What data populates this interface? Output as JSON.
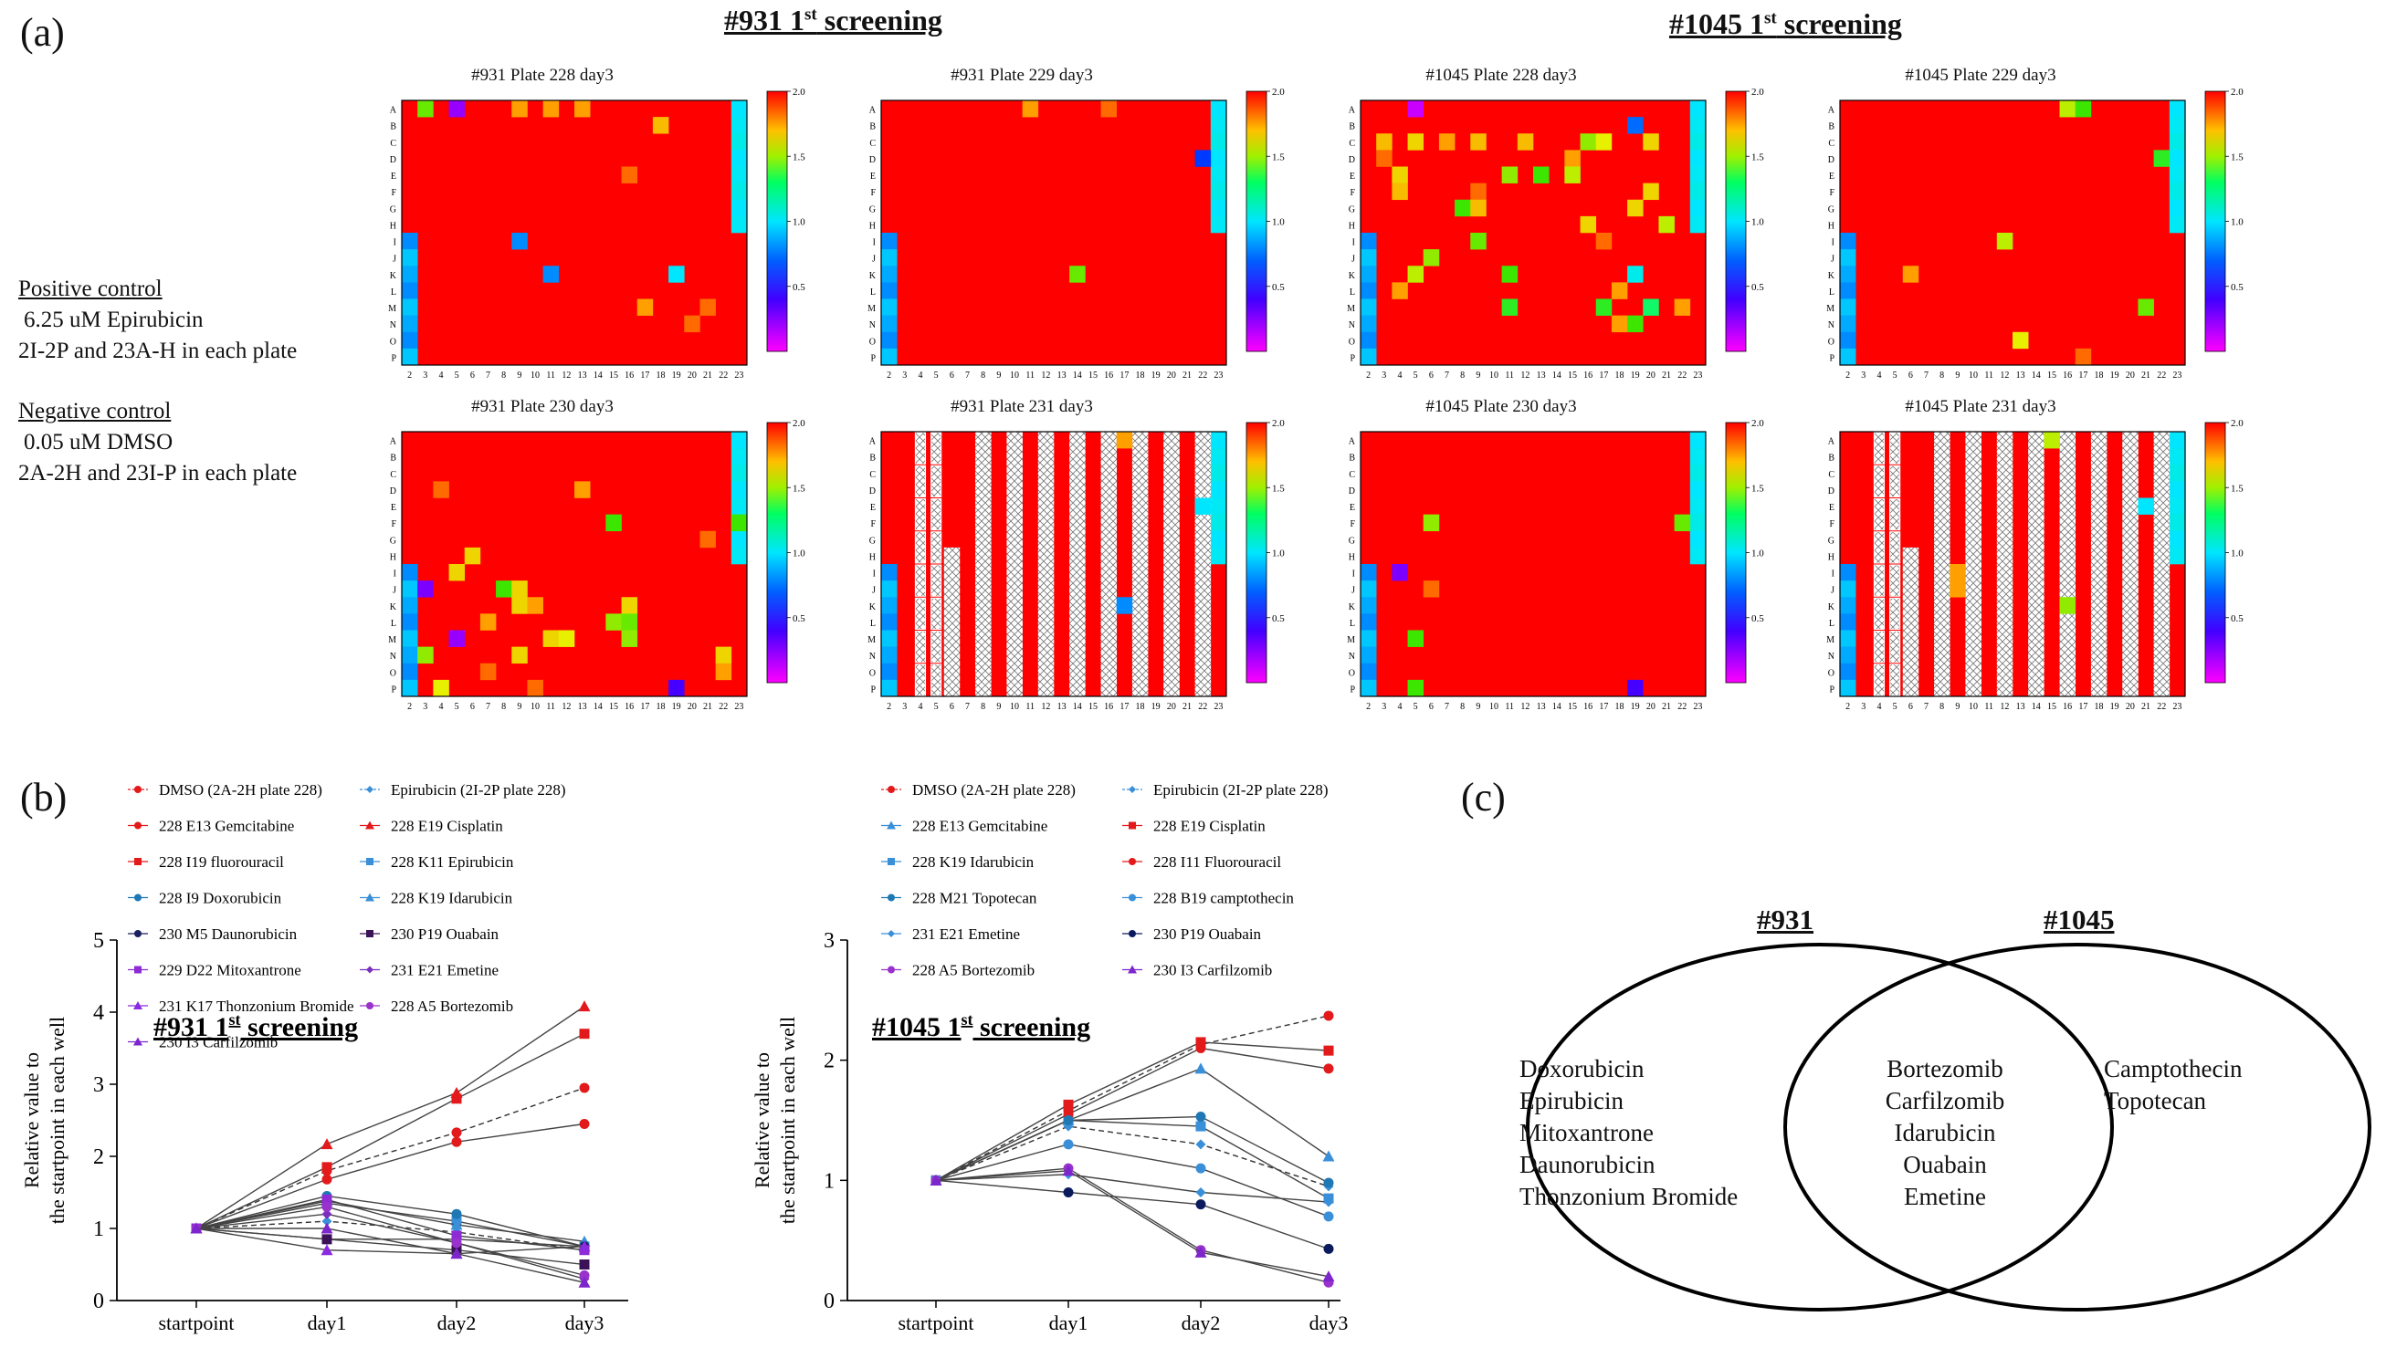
{
  "panel_labels": {
    "a": "(a)",
    "b": "(b)",
    "c": "(c)"
  },
  "section_titles": {
    "s931": {
      "main": "#931 1",
      "sup": "st",
      "rest": " screening"
    },
    "s1045": {
      "main": "#1045 1",
      "sup": "st",
      "rest": " screening"
    }
  },
  "controls": {
    "positive_title": "Positive control",
    "positive_line1": "6.25 uM Epirubicin",
    "positive_line2": "2I-2P and 23A-H in each plate",
    "negative_title": "Negative control",
    "negative_line1": "0.05 uM DMSO",
    "negative_line2": "2A-2H and 23I-P in each plate"
  },
  "heatmaps": {
    "row_labels": [
      "A",
      "B",
      "C",
      "D",
      "E",
      "F",
      "G",
      "H",
      "I",
      "J",
      "K",
      "L",
      "M",
      "N",
      "O",
      "P"
    ],
    "col_labels": [
      "2",
      "3",
      "4",
      "5",
      "6",
      "7",
      "8",
      "9",
      "10",
      "11",
      "12",
      "13",
      "14",
      "15",
      "16",
      "17",
      "18",
      "19",
      "20",
      "21",
      "22",
      "23"
    ],
    "colorbar_ticks": [
      "2.0",
      "1.5",
      "1.0",
      "0.5"
    ],
    "colors": {
      "high": "#ff0000",
      "excluded": "#dddddd"
    },
    "plates": [
      {
        "title": "#931 Plate 228 day3",
        "pattern": "standard",
        "cells": [
          [
            "A",
            3,
            1.55
          ],
          [
            "A",
            5,
            0.25
          ],
          [
            "A",
            9,
            1.85
          ],
          [
            "A",
            11,
            1.85
          ],
          [
            "A",
            13,
            1.85
          ],
          [
            "B",
            18,
            1.8
          ],
          [
            "I",
            9,
            0.85
          ],
          [
            "K",
            11,
            0.85
          ],
          [
            "K",
            19,
            1.0
          ],
          [
            "E",
            16,
            1.9
          ],
          [
            "M",
            17,
            1.85
          ],
          [
            "N",
            20,
            1.9
          ],
          [
            "M",
            21,
            1.9
          ]
        ]
      },
      {
        "title": "#931 Plate 229 day3",
        "pattern": "standard",
        "cells": [
          [
            "A",
            11,
            1.85
          ],
          [
            "A",
            16,
            1.9
          ],
          [
            "D",
            22,
            0.6
          ],
          [
            "K",
            14,
            1.55
          ]
        ]
      },
      {
        "title": "#1045 Plate 228 day3",
        "pattern": "standard",
        "cells": [
          [
            "A",
            5,
            0.15
          ],
          [
            "B",
            19,
            0.75
          ],
          [
            "C",
            3,
            1.8
          ],
          [
            "C",
            5,
            1.75
          ],
          [
            "C",
            7,
            1.85
          ],
          [
            "C",
            9,
            1.8
          ],
          [
            "C",
            12,
            1.8
          ],
          [
            "C",
            16,
            1.6
          ],
          [
            "C",
            17,
            1.7
          ],
          [
            "C",
            20,
            1.75
          ],
          [
            "D",
            3,
            1.9
          ],
          [
            "D",
            15,
            1.85
          ],
          [
            "E",
            4,
            1.75
          ],
          [
            "E",
            11,
            1.6
          ],
          [
            "E",
            13,
            1.5
          ],
          [
            "E",
            15,
            1.65
          ],
          [
            "F",
            4,
            1.8
          ],
          [
            "F",
            9,
            1.9
          ],
          [
            "F",
            20,
            1.75
          ],
          [
            "G",
            8,
            1.5
          ],
          [
            "G",
            9,
            1.8
          ],
          [
            "G",
            19,
            1.75
          ],
          [
            "H",
            16,
            1.75
          ],
          [
            "H",
            21,
            1.65
          ],
          [
            "I",
            9,
            1.55
          ],
          [
            "I",
            17,
            1.9
          ],
          [
            "J",
            6,
            1.6
          ],
          [
            "K",
            5,
            1.65
          ],
          [
            "K",
            11,
            1.5
          ],
          [
            "K",
            19,
            1.05
          ],
          [
            "L",
            4,
            1.85
          ],
          [
            "L",
            18,
            1.85
          ],
          [
            "M",
            11,
            1.45
          ],
          [
            "M",
            17,
            1.45
          ],
          [
            "M",
            20,
            1.35
          ],
          [
            "M",
            22,
            1.85
          ],
          [
            "N",
            18,
            1.85
          ],
          [
            "N",
            19,
            1.5
          ]
        ]
      },
      {
        "title": "#1045 Plate 229 day3",
        "pattern": "standard",
        "cells": [
          [
            "A",
            16,
            1.65
          ],
          [
            "A",
            17,
            1.5
          ],
          [
            "D",
            22,
            1.45
          ],
          [
            "I",
            12,
            1.65
          ],
          [
            "K",
            6,
            1.85
          ],
          [
            "M",
            21,
            1.55
          ],
          [
            "O",
            13,
            1.7
          ],
          [
            "P",
            17,
            1.9
          ]
        ]
      },
      {
        "title": "#931 Plate 230 day3",
        "pattern": "standard",
        "cells": [
          [
            "J",
            3,
            0.3
          ],
          [
            "N",
            3,
            1.6
          ],
          [
            "P",
            4,
            1.7
          ],
          [
            "F",
            15,
            1.5
          ],
          [
            "F",
            23,
            1.5
          ],
          [
            "H",
            6,
            1.75
          ],
          [
            "I",
            5,
            1.75
          ],
          [
            "J",
            8,
            1.5
          ],
          [
            "J",
            9,
            1.75
          ],
          [
            "K",
            9,
            1.75
          ],
          [
            "K",
            10,
            1.85
          ],
          [
            "K",
            16,
            1.75
          ],
          [
            "L",
            7,
            1.85
          ],
          [
            "L",
            15,
            1.6
          ],
          [
            "L",
            16,
            1.55
          ],
          [
            "M",
            5,
            0.25
          ],
          [
            "M",
            11,
            1.75
          ],
          [
            "M",
            12,
            1.7
          ],
          [
            "M",
            16,
            1.6
          ],
          [
            "N",
            9,
            1.75
          ],
          [
            "N",
            22,
            1.75
          ],
          [
            "O",
            22,
            1.85
          ],
          [
            "O",
            7,
            1.9
          ],
          [
            "P",
            19,
            0.4
          ],
          [
            "P",
            10,
            1.9
          ],
          [
            "D",
            4,
            1.9
          ],
          [
            "D",
            13,
            1.85
          ],
          [
            "G",
            21,
            1.9
          ]
        ]
      },
      {
        "title": "#931 Plate 231 day3",
        "pattern": "plate231",
        "cells": [
          [
            "A",
            17,
            1.85
          ],
          [
            "E",
            22,
            1.0
          ],
          [
            "K",
            17,
            0.85
          ]
        ]
      },
      {
        "title": "#1045 Plate 230 day3",
        "pattern": "standard",
        "cells": [
          [
            "I",
            4,
            0.3
          ],
          [
            "J",
            6,
            1.9
          ],
          [
            "M",
            5,
            1.5
          ],
          [
            "P",
            5,
            1.5
          ],
          [
            "F",
            6,
            1.6
          ],
          [
            "F",
            22,
            1.55
          ],
          [
            "P",
            19,
            0.4
          ]
        ]
      },
      {
        "title": "#1045 Plate 231 day3",
        "pattern": "plate231",
        "cells": [
          [
            "A",
            15,
            1.65
          ],
          [
            "E",
            21,
            1.0
          ],
          [
            "I",
            9,
            1.85
          ],
          [
            "J",
            9,
            1.85
          ],
          [
            "K",
            16,
            1.6
          ]
        ]
      }
    ]
  },
  "chart_data": [
    {
      "type": "line",
      "title": "#931 1st screening",
      "xlabel": "",
      "ylabel": "Relative value to the startpoint in each well",
      "categories": [
        "startpoint",
        "day1",
        "day2",
        "day3"
      ],
      "ylim": [
        0,
        5
      ],
      "yticks": [
        "0",
        "1",
        "2",
        "3",
        "4",
        "5"
      ],
      "series": [
        {
          "name": "DMSO (2A-2H plate 228)",
          "color": "#e31a1c",
          "marker": "circle",
          "dashed": true,
          "values": [
            1,
            1.8,
            2.33,
            2.95
          ]
        },
        {
          "name": "Epirubicin (2I-2P plate 228)",
          "color": "#3a8fd9",
          "marker": "diamond",
          "dashed": true,
          "values": [
            1,
            1.1,
            0.95,
            0.7
          ]
        },
        {
          "name": "228 E13 Gemcitabine",
          "color": "#e31a1c",
          "marker": "circle",
          "dashed": false,
          "values": [
            1,
            1.68,
            2.2,
            2.45
          ]
        },
        {
          "name": "228 E19 Cisplatin",
          "color": "#e31a1c",
          "marker": "triangle",
          "dashed": false,
          "values": [
            1,
            2.17,
            2.88,
            4.08
          ]
        },
        {
          "name": "228 I19 fluorouracil",
          "color": "#e31a1c",
          "marker": "square",
          "dashed": false,
          "values": [
            1,
            1.85,
            2.8,
            3.7
          ]
        },
        {
          "name": "228 K11 Epirubicin",
          "color": "#3a8fd9",
          "marker": "square",
          "dashed": false,
          "values": [
            1,
            1.35,
            1.1,
            0.75
          ]
        },
        {
          "name": "228 I9 Doxorubicin",
          "color": "#1f78b4",
          "marker": "circle",
          "dashed": false,
          "values": [
            1,
            1.45,
            1.2,
            0.75
          ]
        },
        {
          "name": "228 K19 Idarubicin",
          "color": "#3a8fd9",
          "marker": "triangle",
          "dashed": false,
          "values": [
            1,
            1.38,
            1.05,
            0.82
          ]
        },
        {
          "name": "230 M5 Daunorubicin",
          "color": "#1a1f5e",
          "marker": "circle",
          "dashed": false,
          "values": [
            1,
            0.85,
            0.85,
            0.75
          ]
        },
        {
          "name": "230 P19 Ouabain",
          "color": "#3b1257",
          "marker": "square",
          "dashed": false,
          "values": [
            1,
            0.85,
            0.7,
            0.5
          ]
        },
        {
          "name": "229 D22 Mitoxantrone",
          "color": "#8e2bd4",
          "marker": "square",
          "dashed": false,
          "values": [
            1,
            1.4,
            0.9,
            0.7
          ]
        },
        {
          "name": "231 E21 Emetine",
          "color": "#7b2fbe",
          "marker": "diamond",
          "dashed": false,
          "values": [
            1,
            1.2,
            0.8,
            0.3
          ]
        },
        {
          "name": "231 K17 Thonzonium Bromide",
          "color": "#8a2be2",
          "marker": "triangle",
          "dashed": false,
          "values": [
            1,
            0.7,
            0.65,
            0.75
          ]
        },
        {
          "name": "228 A5 Bortezomib",
          "color": "#9932cc",
          "marker": "circle",
          "dashed": false,
          "values": [
            1,
            1.3,
            0.8,
            0.35
          ]
        },
        {
          "name": "230 I3 Carfilzomib",
          "color": "#7d26cd",
          "marker": "triangle",
          "dashed": false,
          "values": [
            1,
            1.0,
            0.65,
            0.25
          ]
        }
      ]
    },
    {
      "type": "line",
      "title": "#1045 1st screening",
      "xlabel": "",
      "ylabel": "Relative value to the startpoint in each well",
      "categories": [
        "startpoint",
        "day1",
        "day2",
        "day3"
      ],
      "ylim": [
        0,
        3
      ],
      "yticks": [
        "0",
        "1",
        "2",
        "3"
      ],
      "series": [
        {
          "name": "DMSO (2A-2H plate 228)",
          "color": "#e31a1c",
          "marker": "circle",
          "dashed": true,
          "values": [
            1,
            1.58,
            2.13,
            2.37
          ]
        },
        {
          "name": "Epirubicin (2I-2P plate 228)",
          "color": "#3a8fd9",
          "marker": "diamond",
          "dashed": true,
          "values": [
            1,
            1.45,
            1.3,
            0.95
          ]
        },
        {
          "name": "228 E13 Gemcitabine",
          "color": "#3a8fd9",
          "marker": "triangle",
          "dashed": false,
          "values": [
            1,
            1.5,
            1.93,
            1.2
          ]
        },
        {
          "name": "228 E19 Cisplatin",
          "color": "#e31a1c",
          "marker": "square",
          "dashed": false,
          "values": [
            1,
            1.63,
            2.15,
            2.08
          ]
        },
        {
          "name": "228 K19 Idarubicin",
          "color": "#3a8fd9",
          "marker": "square",
          "dashed": false,
          "values": [
            1,
            1.5,
            1.45,
            0.85
          ]
        },
        {
          "name": "228 I11 Fluorouracil",
          "color": "#e31a1c",
          "marker": "circle",
          "dashed": false,
          "values": [
            1,
            1.55,
            2.1,
            1.93
          ]
        },
        {
          "name": "228 M21 Topotecan",
          "color": "#1f78b4",
          "marker": "circle",
          "dashed": false,
          "values": [
            1,
            1.5,
            1.53,
            0.98
          ]
        },
        {
          "name": "228 B19 camptothecin",
          "color": "#3a8fd9",
          "marker": "circle",
          "dashed": false,
          "values": [
            1,
            1.3,
            1.1,
            0.7
          ]
        },
        {
          "name": "231 E21 Emetine",
          "color": "#3a8fd9",
          "marker": "diamond",
          "dashed": false,
          "values": [
            1,
            1.05,
            0.9,
            0.82
          ]
        },
        {
          "name": "230 P19 Ouabain",
          "color": "#0b1a5c",
          "marker": "circle",
          "dashed": false,
          "values": [
            1,
            0.9,
            0.8,
            0.43
          ]
        },
        {
          "name": "228 A5 Bortezomib",
          "color": "#9932cc",
          "marker": "circle",
          "dashed": false,
          "values": [
            1,
            1.1,
            0.42,
            0.15
          ]
        },
        {
          "name": "230 I3 Carfilzomib",
          "color": "#7d26cd",
          "marker": "triangle",
          "dashed": false,
          "values": [
            1,
            1.08,
            0.4,
            0.2
          ]
        }
      ]
    }
  ],
  "venn": {
    "left_title": "#931",
    "right_title": "#1045",
    "left_only": [
      "Doxorubicin",
      "Epirubicin",
      "Mitoxantrone",
      "Daunorubicin",
      "Thonzonium Bromide"
    ],
    "both": [
      "Bortezomib",
      "Carfilzomib",
      "Idarubicin",
      "Ouabain",
      "Emetine"
    ],
    "right_only": [
      "Camptothecin",
      "Topotecan"
    ]
  }
}
